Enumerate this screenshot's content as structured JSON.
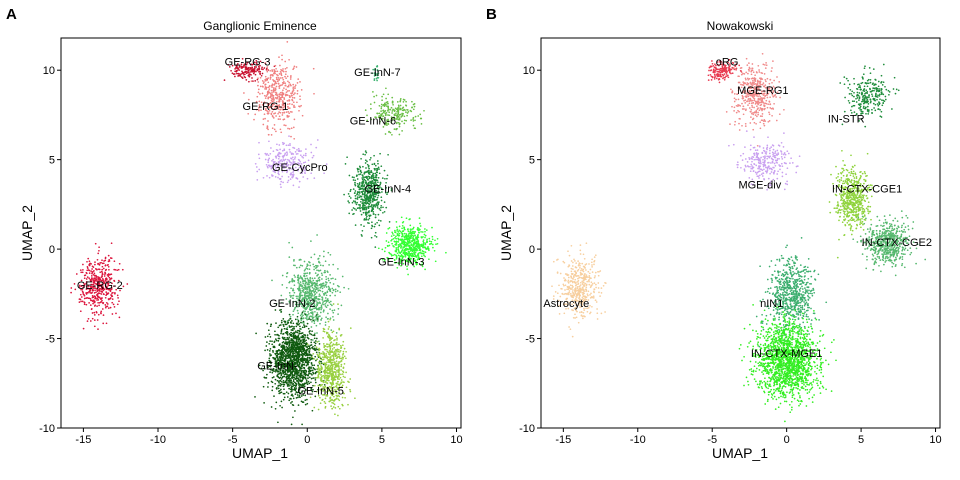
{
  "chart_data": [
    {
      "type": "scatter",
      "panel_label": "A",
      "title": "Ganglionic Eminence",
      "xlabel": "UMAP_1",
      "ylabel": "UMAP_2",
      "xlim": [
        -16.5,
        10.3
      ],
      "ylim": [
        -10,
        11.8
      ],
      "xticks": [
        -15,
        -10,
        -5,
        0,
        5,
        10
      ],
      "yticks": [
        -10,
        -5,
        0,
        5,
        10
      ],
      "legend": "none",
      "clusters": [
        {
          "name": "GE-RG-3",
          "color": "#c8102e",
          "center": [
            -4.0,
            10.0
          ],
          "spread": [
            1.1,
            0.45
          ],
          "n": 160,
          "label_pos": [
            -4.0,
            10.5
          ]
        },
        {
          "name": "GE-RG-1",
          "color": "#f08080",
          "center": [
            -2.0,
            8.6
          ],
          "spread": [
            1.3,
            1.6
          ],
          "n": 420,
          "label_pos": [
            -2.8,
            8.0
          ]
        },
        {
          "name": "GE-CycPro",
          "color": "#c9a0f0",
          "center": [
            -1.4,
            4.8
          ],
          "spread": [
            1.6,
            1.0
          ],
          "n": 260,
          "label_pos": [
            -0.5,
            4.6
          ]
        },
        {
          "name": "GE-InN-7",
          "color": "#3cb371",
          "center": [
            4.6,
            9.8
          ],
          "spread": [
            0.2,
            0.5
          ],
          "n": 25,
          "label_pos": [
            4.7,
            9.9
          ]
        },
        {
          "name": "GE-InN-6",
          "color": "#6abf45",
          "center": [
            5.8,
            7.6
          ],
          "spread": [
            1.4,
            0.9
          ],
          "n": 220,
          "label_pos": [
            4.4,
            7.2
          ]
        },
        {
          "name": "GE-InN-4",
          "color": "#1e8c3a",
          "center": [
            4.1,
            3.2
          ],
          "spread": [
            1.0,
            1.6
          ],
          "n": 560,
          "label_pos": [
            5.4,
            3.4
          ]
        },
        {
          "name": "GE-InN-3",
          "color": "#33ff33",
          "center": [
            6.9,
            0.2
          ],
          "spread": [
            1.3,
            1.0
          ],
          "n": 560,
          "label_pos": [
            6.3,
            -0.7
          ]
        },
        {
          "name": "GE-RG-2",
          "color": "#dc143c",
          "center": [
            -13.9,
            -2.1
          ],
          "spread": [
            1.2,
            1.5
          ],
          "n": 440,
          "label_pos": [
            -13.9,
            -2.0
          ]
        },
        {
          "name": "GE-InN-2",
          "color": "#56b86e",
          "center": [
            0.3,
            -2.5
          ],
          "spread": [
            1.4,
            1.7
          ],
          "n": 650,
          "label_pos": [
            -1.0,
            -3.0
          ]
        },
        {
          "name": "GE-InN-1",
          "color": "#0f5a0f",
          "center": [
            -0.9,
            -6.2
          ],
          "spread": [
            1.4,
            1.9
          ],
          "n": 1400,
          "label_pos": [
            -2.0,
            -6.5
          ]
        },
        {
          "name": "GE-InN-5",
          "color": "#98d040",
          "center": [
            1.6,
            -6.7
          ],
          "spread": [
            0.9,
            1.9
          ],
          "n": 600,
          "label_pos": [
            0.9,
            -7.9
          ]
        }
      ],
      "labels_shown": [
        "GE-RG-3",
        "GE-RG-1",
        "GE-CycPro",
        "GE-InN-7",
        "GE-InN-6",
        "GE-InN-4",
        "GE-InN-3",
        "GE-RG-2",
        "GE-InN-2",
        "GE-InN-1",
        "GE-InN-5"
      ],
      "label_text": [
        "GE-RG-3",
        "GE-RG-1",
        "GE-CycPro",
        "GE-InN-7",
        "GE-InN-6",
        "GE-InN-4",
        "GE-InN-3",
        "GE-RG-2",
        "GE-InN-2",
        "GE-InN-",
        "GE-InN-5"
      ]
    },
    {
      "type": "scatter",
      "panel_label": "B",
      "title": "Nowakowski",
      "xlabel": "UMAP_1",
      "ylabel": "UMAP_2",
      "xlim": [
        -16.5,
        10.3
      ],
      "ylim": [
        -10,
        11.8
      ],
      "xticks": [
        -15,
        -10,
        -5,
        0,
        5,
        10
      ],
      "yticks": [
        -10,
        -5,
        0,
        5,
        10
      ],
      "legend": "none",
      "clusters": [
        {
          "name": "oRG",
          "color": "#e8394f",
          "center": [
            -4.4,
            10.0
          ],
          "spread": [
            0.9,
            0.5
          ],
          "n": 160,
          "label_pos": [
            -4.0,
            10.5
          ]
        },
        {
          "name": "MGE-RG1",
          "color": "#f08a8a",
          "center": [
            -2.1,
            8.6
          ],
          "spread": [
            1.3,
            1.6
          ],
          "n": 420,
          "label_pos": [
            -1.6,
            8.9
          ]
        },
        {
          "name": "MGE-div",
          "color": "#c9a0f0",
          "center": [
            -1.4,
            4.8
          ],
          "spread": [
            1.6,
            1.0
          ],
          "n": 260,
          "label_pos": [
            -1.8,
            3.6
          ]
        },
        {
          "name": "IN-STR",
          "color": "#1e8c3a",
          "center": [
            5.6,
            8.6
          ],
          "spread": [
            1.3,
            1.2
          ],
          "n": 260,
          "label_pos": [
            4.0,
            7.3
          ]
        },
        {
          "name": "IN-CTX-CGE1",
          "color": "#8fd33d",
          "center": [
            4.4,
            2.8
          ],
          "spread": [
            1.0,
            1.5
          ],
          "n": 560,
          "label_pos": [
            5.4,
            3.4
          ]
        },
        {
          "name": "IN-CTX-CGE2",
          "color": "#56b86e",
          "center": [
            6.8,
            0.3
          ],
          "spread": [
            1.3,
            1.1
          ],
          "n": 560,
          "label_pos": [
            7.4,
            0.4
          ]
        },
        {
          "name": "Astrocyte",
          "color": "#f7cf9f",
          "center": [
            -13.9,
            -2.1
          ],
          "spread": [
            1.2,
            1.5
          ],
          "n": 440,
          "label_pos": [
            -14.8,
            -3.0
          ]
        },
        {
          "name": "nIN1",
          "color": "#3cae6e",
          "center": [
            0.3,
            -2.5
          ],
          "spread": [
            1.4,
            1.7
          ],
          "n": 650,
          "label_pos": [
            -1.0,
            -3.0
          ]
        },
        {
          "name": "IN-CTX-MGE1",
          "color": "#33ee22",
          "center": [
            0.0,
            -6.2
          ],
          "spread": [
            1.8,
            1.9
          ],
          "n": 1600,
          "label_pos": [
            0.0,
            -5.8
          ]
        }
      ],
      "labels_shown": [
        "oRG",
        "MGE-RG1",
        "MGE-div",
        "IN-STR",
        "IN-CTX-CGE1",
        "IN-CTX-CGE2",
        "Astrocyte",
        "nIN1",
        "IN-CTX-MGE1"
      ],
      "label_text": [
        "oRG",
        "MGE-RG1",
        "MGE-div",
        "IN-STR",
        "IN-CTX-CGE1",
        "IN-CTX-CGE2",
        "Astrocyte",
        "nIN1",
        "IN-CTX-MGE1"
      ]
    }
  ]
}
